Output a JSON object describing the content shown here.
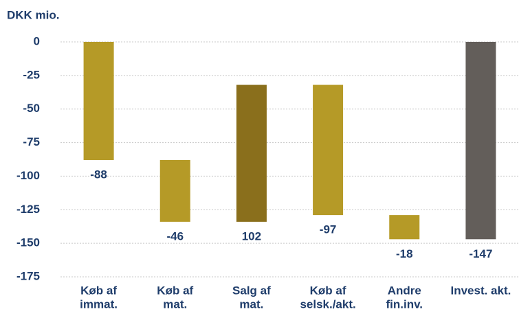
{
  "chart_data": {
    "type": "waterfall",
    "title": "DKK mio.",
    "categories": [
      [
        "Køb af",
        "immat."
      ],
      [
        "Køb af",
        "mat."
      ],
      [
        "Salg af",
        "mat."
      ],
      [
        "Køb af",
        "selsk./akt."
      ],
      [
        "Andre",
        "fin.inv."
      ],
      [
        "Invest. akt."
      ]
    ],
    "values": [
      -88,
      -46,
      102,
      -97,
      -18,
      -147
    ],
    "measure": [
      "relative",
      "relative",
      "relative",
      "relative",
      "relative",
      "total"
    ],
    "colors": [
      "#b59a27",
      "#b59a27",
      "#8a6f1c",
      "#b59a27",
      "#b59a27",
      "#635e5a"
    ],
    "ylim": [
      -175,
      0
    ],
    "yticks": [
      0,
      -25,
      -50,
      -75,
      -100,
      -125,
      -150,
      -175
    ],
    "grid": true
  }
}
